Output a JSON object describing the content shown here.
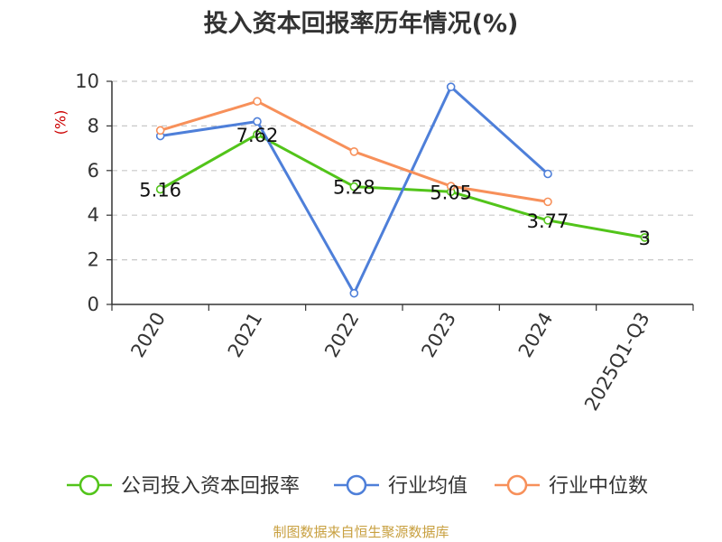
{
  "chart_data": {
    "type": "line",
    "title": "投入资本回报率历年情况(%)",
    "ylabel": "(%)",
    "categories": [
      "2020",
      "2021",
      "2022",
      "2023",
      "2024",
      "2025Q1-Q3"
    ],
    "ylim": [
      0,
      10
    ],
    "yticks": [
      0,
      2,
      4,
      6,
      8,
      10
    ],
    "grid": true,
    "legend_position": "bottom",
    "series": [
      {
        "name": "公司投入资本回报率",
        "color": "#52c41a",
        "values": [
          5.16,
          7.62,
          5.28,
          5.05,
          3.77,
          3
        ],
        "labels": [
          "5.16",
          "7.62",
          "5.28",
          "5.05",
          "3.77",
          "3"
        ]
      },
      {
        "name": "行业均值",
        "color": "#4e7fd9",
        "values": [
          7.55,
          8.2,
          0.5,
          9.75,
          5.85,
          null
        ]
      },
      {
        "name": "行业中位数",
        "color": "#f7905a",
        "values": [
          7.8,
          9.1,
          6.85,
          5.3,
          4.6,
          null
        ]
      }
    ]
  },
  "source": "制图数据来自恒生聚源数据库"
}
